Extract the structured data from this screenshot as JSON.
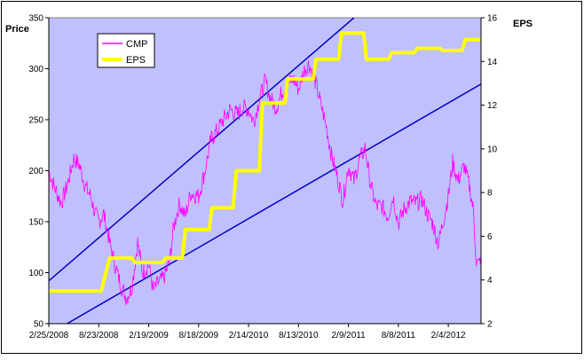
{
  "chart_data": {
    "type": "line",
    "title": "",
    "left_axis": {
      "label": "Price",
      "range": [
        50,
        350
      ],
      "ticks": [
        50,
        100,
        150,
        200,
        250,
        300,
        350
      ]
    },
    "right_axis": {
      "label": "EPS",
      "range": [
        2,
        16
      ],
      "ticks": [
        2,
        4,
        6,
        8,
        10,
        12,
        14,
        16
      ]
    },
    "x_axis": {
      "start": "2/25/2008",
      "end": "6/1/2012",
      "tick_labels": [
        "2/25/2008",
        "8/23/2008",
        "2/19/2009",
        "8/18/2009",
        "2/14/2010",
        "8/13/2010",
        "2/9/2011",
        "8/8/2011",
        "2/4/2012"
      ]
    },
    "grid": false,
    "legend": {
      "position": "top-left",
      "entries": [
        "CMP",
        "EPS"
      ]
    },
    "colors": {
      "plot_bg": "#c0c0ff",
      "cmp": "#ff00ff",
      "eps": "#ffff00",
      "trend": "#0000c8"
    },
    "series": [
      {
        "name": "CMP",
        "axis": "left",
        "points": [
          [
            "2/25/2008",
            200
          ],
          [
            "3/15/2008",
            185
          ],
          [
            "4/10/2008",
            168
          ],
          [
            "5/1/2008",
            185
          ],
          [
            "5/25/2008",
            212
          ],
          [
            "6/15/2008",
            205
          ],
          [
            "7/5/2008",
            185
          ],
          [
            "7/25/2008",
            175
          ],
          [
            "8/10/2008",
            158
          ],
          [
            "8/23/2008",
            150
          ],
          [
            "9/10/2008",
            158
          ],
          [
            "10/1/2008",
            130
          ],
          [
            "10/20/2008",
            108
          ],
          [
            "11/10/2008",
            88
          ],
          [
            "12/1/2008",
            75
          ],
          [
            "12/20/2008",
            85
          ],
          [
            "1/10/2009",
            130
          ],
          [
            "1/28/2009",
            100
          ],
          [
            "2/19/2009",
            108
          ],
          [
            "3/8/2009",
            82
          ],
          [
            "3/25/2009",
            90
          ],
          [
            "4/15/2009",
            95
          ],
          [
            "5/5/2009",
            110
          ],
          [
            "5/20/2009",
            145
          ],
          [
            "6/10/2009",
            168
          ],
          [
            "7/1/2009",
            155
          ],
          [
            "7/20/2009",
            178
          ],
          [
            "8/18/2009",
            175
          ],
          [
            "9/10/2009",
            200
          ],
          [
            "10/1/2009",
            230
          ],
          [
            "10/25/2009",
            240
          ],
          [
            "11/15/2009",
            250
          ],
          [
            "12/10/2009",
            260
          ],
          [
            "1/5/2010",
            255
          ],
          [
            "1/25/2010",
            262
          ],
          [
            "2/14/2010",
            260
          ],
          [
            "3/5/2010",
            248
          ],
          [
            "3/25/2010",
            270
          ],
          [
            "4/15/2010",
            288
          ],
          [
            "5/5/2010",
            270
          ],
          [
            "5/25/2010",
            262
          ],
          [
            "6/15/2010",
            278
          ],
          [
            "7/5/2010",
            285
          ],
          [
            "7/25/2010",
            290
          ],
          [
            "8/13/2010",
            280
          ],
          [
            "9/1/2010",
            298
          ],
          [
            "9/20/2010",
            305
          ],
          [
            "10/10/2010",
            290
          ],
          [
            "10/30/2010",
            268
          ],
          [
            "11/20/2010",
            245
          ],
          [
            "12/10/2010",
            215
          ],
          [
            "12/30/2010",
            195
          ],
          [
            "1/20/2011",
            170
          ],
          [
            "2/9/2011",
            205
          ],
          [
            "3/1/2011",
            190
          ],
          [
            "3/20/2011",
            210
          ],
          [
            "4/10/2011",
            222
          ],
          [
            "5/1/2011",
            185
          ],
          [
            "5/20/2011",
            165
          ],
          [
            "6/10/2011",
            165
          ],
          [
            "7/1/2011",
            155
          ],
          [
            "7/20/2011",
            175
          ],
          [
            "8/8/2011",
            148
          ],
          [
            "8/28/2011",
            162
          ],
          [
            "9/20/2011",
            170
          ],
          [
            "10/10/2011",
            168
          ],
          [
            "11/1/2011",
            172
          ],
          [
            "11/20/2011",
            158
          ],
          [
            "12/10/2011",
            148
          ],
          [
            "12/30/2011",
            128
          ],
          [
            "1/20/2012",
            155
          ],
          [
            "2/4/2012",
            175
          ],
          [
            "2/20/2012",
            208
          ],
          [
            "3/10/2012",
            190
          ],
          [
            "4/1/2012",
            205
          ],
          [
            "4/20/2012",
            185
          ],
          [
            "5/5/2012",
            160
          ],
          [
            "5/15/2012",
            110
          ],
          [
            "5/25/2012",
            108
          ],
          [
            "6/1/2012",
            118
          ]
        ]
      },
      {
        "name": "EPS",
        "axis": "right",
        "step": true,
        "points": [
          [
            "2/25/2008",
            3.5
          ],
          [
            "9/1/2008",
            3.5
          ],
          [
            "10/1/2008",
            5.0
          ],
          [
            "12/20/2008",
            5.0
          ],
          [
            "1/1/2009",
            4.8
          ],
          [
            "4/10/2009",
            4.8
          ],
          [
            "4/20/2009",
            5.0
          ],
          [
            "6/20/2009",
            5.0
          ],
          [
            "7/1/2009",
            6.3
          ],
          [
            "9/25/2009",
            6.3
          ],
          [
            "10/5/2009",
            7.3
          ],
          [
            "12/20/2009",
            7.3
          ],
          [
            "1/1/2010",
            9.0
          ],
          [
            "3/25/2010",
            9.0
          ],
          [
            "4/5/2010",
            12.1
          ],
          [
            "6/25/2010",
            12.1
          ],
          [
            "7/5/2010",
            13.2
          ],
          [
            "10/5/2010",
            13.2
          ],
          [
            "10/15/2010",
            14.1
          ],
          [
            "1/5/2011",
            14.1
          ],
          [
            "1/15/2011",
            15.3
          ],
          [
            "4/5/2011",
            15.3
          ],
          [
            "4/15/2011",
            14.1
          ],
          [
            "7/5/2011",
            14.1
          ],
          [
            "7/15/2011",
            14.4
          ],
          [
            "10/5/2011",
            14.4
          ],
          [
            "10/15/2011",
            14.6
          ],
          [
            "1/5/2012",
            14.6
          ],
          [
            "1/15/2012",
            14.5
          ],
          [
            "3/25/2012",
            14.5
          ],
          [
            "4/5/2012",
            15.0
          ],
          [
            "6/1/2012",
            15.0
          ]
        ]
      }
    ],
    "trend_lines": [
      {
        "points": [
          [
            "2/25/2008",
            92
          ],
          [
            "3/1/2011",
            350
          ]
        ]
      },
      {
        "points": [
          [
            "5/1/2008",
            50
          ],
          [
            "6/1/2012",
            285
          ]
        ]
      }
    ]
  }
}
